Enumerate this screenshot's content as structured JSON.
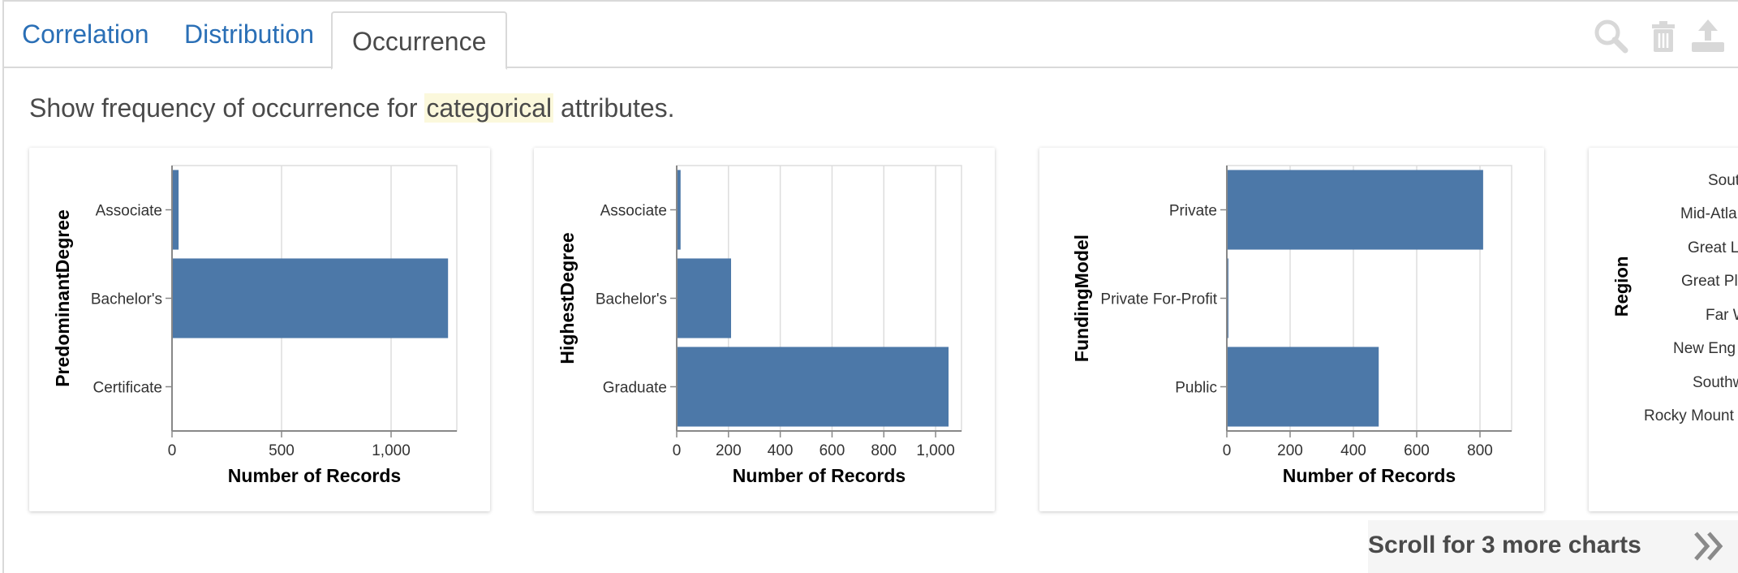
{
  "tabs": [
    {
      "label": "Correlation",
      "active": false
    },
    {
      "label": "Distribution",
      "active": false
    },
    {
      "label": "Occurrence",
      "active": true
    }
  ],
  "toolbar": {
    "icons": [
      "search-icon",
      "trash-icon",
      "export-icon"
    ]
  },
  "description": {
    "before": "Show frequency of occurrence for ",
    "highlight": "categorical",
    "after": " attributes."
  },
  "colors": {
    "bar": "#4c78a8",
    "tab_link": "#2a6fb6",
    "grid": "#dddddd",
    "highlight": "#fbf8dc"
  },
  "scroll_hint": {
    "label": "Scroll for 3 more charts"
  },
  "chart_data": [
    {
      "type": "bar",
      "orientation": "horizontal",
      "ylabel": "PredominantDegree",
      "xlabel": "Number of Records",
      "categories": [
        "Associate",
        "Bachelor's",
        "Certificate"
      ],
      "values": [
        30,
        1260,
        0
      ],
      "xlim": [
        0,
        1300
      ],
      "xticks": [
        0,
        500,
        1000
      ],
      "xtick_labels": [
        "0",
        "500",
        "1,000"
      ],
      "grid": true
    },
    {
      "type": "bar",
      "orientation": "horizontal",
      "ylabel": "HighestDegree",
      "xlabel": "Number of Records",
      "categories": [
        "Associate",
        "Bachelor's",
        "Graduate"
      ],
      "values": [
        15,
        210,
        1050
      ],
      "xlim": [
        0,
        1100
      ],
      "xticks": [
        0,
        200,
        400,
        600,
        800,
        1000
      ],
      "xtick_labels": [
        "0",
        "200",
        "400",
        "600",
        "800",
        "1,000"
      ],
      "grid": true
    },
    {
      "type": "bar",
      "orientation": "horizontal",
      "ylabel": "FundingModel",
      "xlabel": "Number of Records",
      "categories": [
        "Private",
        "Private For-Profit",
        "Public"
      ],
      "values": [
        810,
        5,
        480
      ],
      "xlim": [
        0,
        900
      ],
      "xticks": [
        0,
        200,
        400,
        600,
        800
      ],
      "xtick_labels": [
        "0",
        "200",
        "400",
        "600",
        "800"
      ],
      "grid": true
    },
    {
      "type": "bar",
      "orientation": "horizontal",
      "ylabel": "Region",
      "categories_visible_partial": [
        "South",
        "Mid-Atla",
        "Great La",
        "Great Pl",
        "Far W",
        "New Eng",
        "Southw",
        "Rocky Mount"
      ]
    }
  ]
}
